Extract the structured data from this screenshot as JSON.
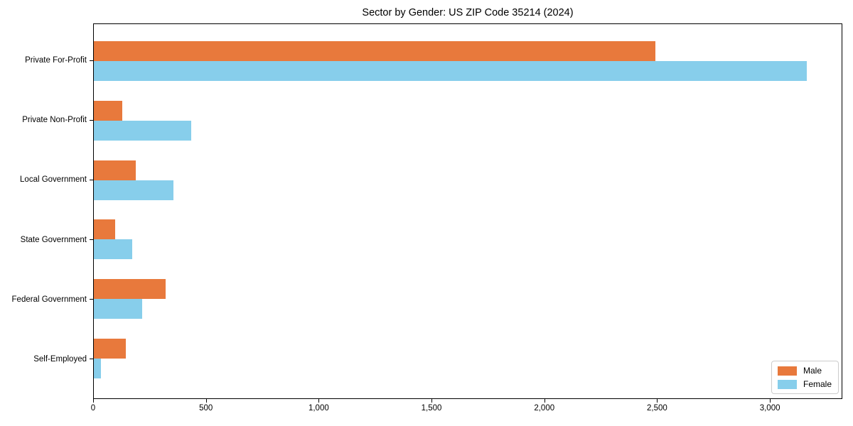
{
  "chart_data": {
    "type": "bar",
    "orientation": "horizontal",
    "title": "Sector by Gender: US ZIP Code 35214 (2024)",
    "categories": [
      "Private For-Profit",
      "Private Non-Profit",
      "Local Government",
      "State Government",
      "Federal Government",
      "Self-Employed"
    ],
    "series": [
      {
        "name": "Male",
        "color": "#E8793C",
        "values": [
          2493,
          126,
          186,
          95,
          318,
          142
        ]
      },
      {
        "name": "Female",
        "color": "#87CEEB",
        "values": [
          3165,
          432,
          353,
          170,
          214,
          32
        ]
      }
    ],
    "xlabel": "",
    "ylabel": "",
    "xlim": [
      0,
      3321
    ],
    "x_ticks": [
      0,
      500,
      1000,
      1500,
      2000,
      2500,
      3000
    ],
    "x_tick_labels": [
      "0",
      "500",
      "1,000",
      "1,500",
      "2,000",
      "2,500",
      "3,000"
    ],
    "grid": false,
    "legend_position": "lower right",
    "legend_labels": [
      "Male",
      "Female"
    ],
    "colors": {
      "male": "#E8793C",
      "female": "#87CEEB",
      "spine": "#000000",
      "legend_border": "#cccccc"
    }
  }
}
